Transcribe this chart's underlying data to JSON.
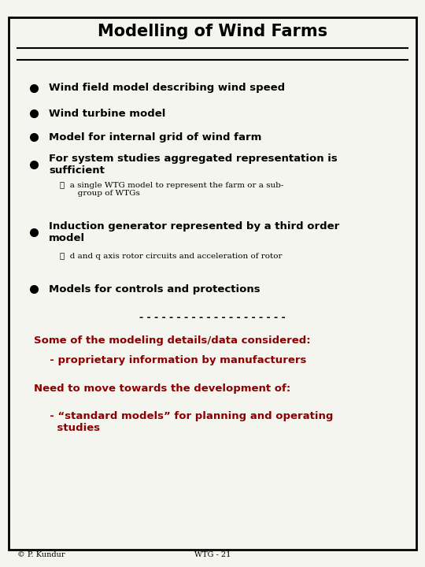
{
  "title": "Modelling of Wind Farms",
  "bg_color": "#f5f5f0",
  "border_color": "#000000",
  "title_color": "#000000",
  "bullet_color": "#000000",
  "red_color": "#8b0000",
  "bullet_items": [
    "Wind field model describing wind speed",
    "Wind turbine model",
    "Model for internal grid of wind farm",
    "For system studies aggregated representation is\nsufficient",
    "Induction generator represented by a third order\nmodel",
    "Models for controls and protections"
  ],
  "sub_items": {
    "3": "☛  a single WTG model to represent the farm or a sub-\n       group of WTGs",
    "4": "☛  d and q axis rotor circuits and acceleration of rotor"
  },
  "separator": "- - - - - - - - - - - - - - - - - - - - -",
  "red_lines": [
    "Some of the modeling details/data considered:",
    "  - proprietary information by manufacturers",
    "Need to move towards the development of:",
    "  - “standard models” for planning and operating\n    studies"
  ],
  "footer_left": "© P. Kundur",
  "footer_right": "WTG - 21"
}
